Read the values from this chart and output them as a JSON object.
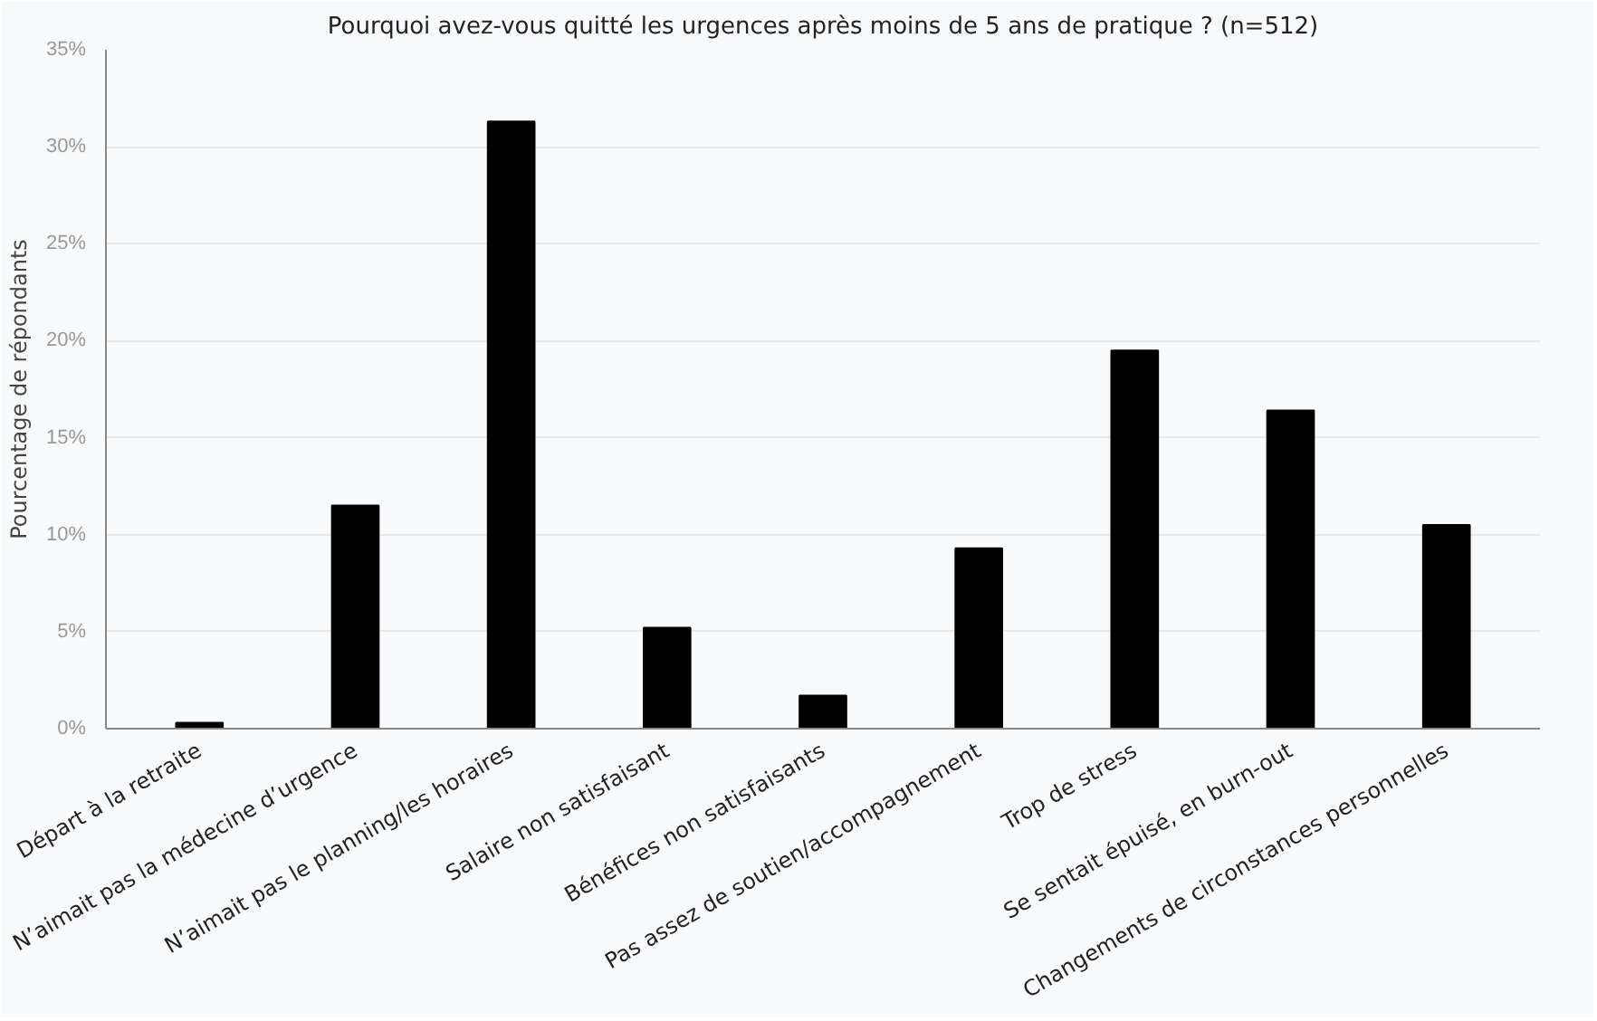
{
  "chart_data": {
    "type": "bar",
    "title": "Pourquoi avez-vous quitté les urgences après moins de 5 ans de pratique ? (n=512)",
    "ylabel": "Pourcentage de répondants",
    "categories": [
      "Départ à la retraite",
      "N’aimait pas la médecine d’urgence",
      "N’aimait pas le planning/les horaires",
      "Salaire non satisfaisant",
      "Bénéfices non satisfaisants",
      "Pas assez de soutien/accompagnement",
      "Trop de stress",
      "Se sentait épuisé, en burn-out",
      "Changements de circonstances personnelles"
    ],
    "values": [
      0.3,
      11.5,
      31.3,
      5.2,
      1.7,
      9.3,
      19.5,
      16.4,
      10.5
    ],
    "color": "#000000",
    "ylim": [
      0,
      35
    ],
    "yticks": [
      {
        "value": 0,
        "label": "0%"
      },
      {
        "value": 5,
        "label": "5%"
      },
      {
        "value": 10,
        "label": "10%"
      },
      {
        "value": 15,
        "label": "15%"
      },
      {
        "value": 20,
        "label": "20%"
      },
      {
        "value": 25,
        "label": "25%"
      },
      {
        "value": 30,
        "label": "30%"
      },
      {
        "value": 35,
        "label": "35%"
      }
    ],
    "grid": "y"
  }
}
